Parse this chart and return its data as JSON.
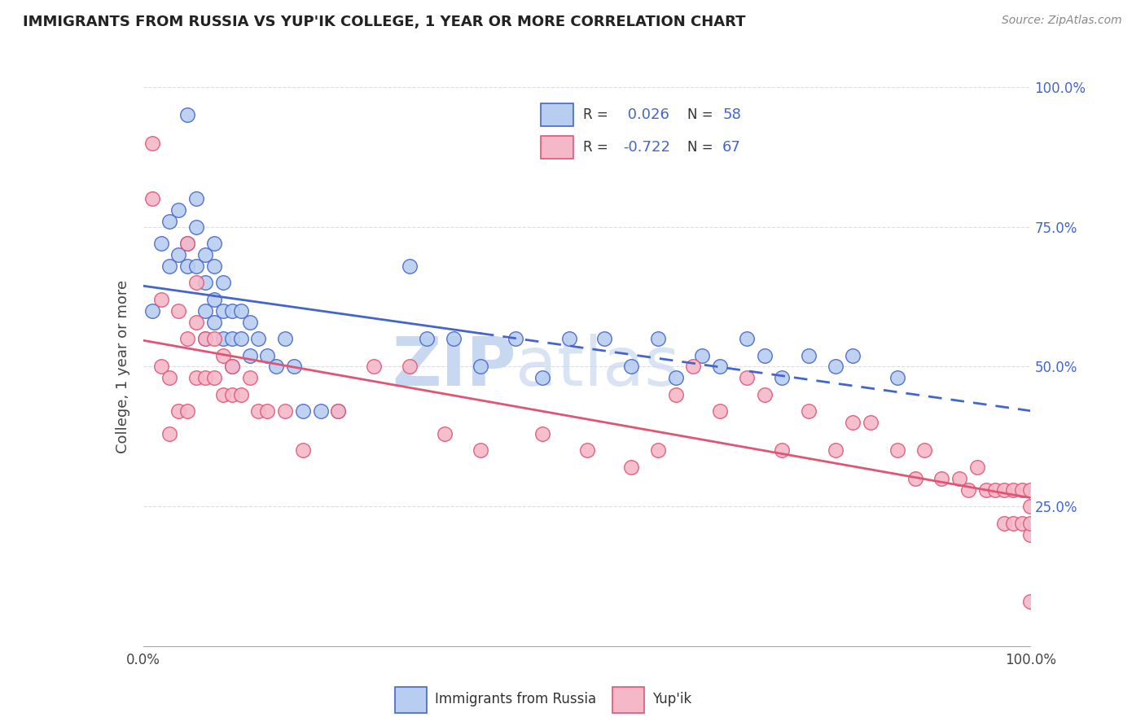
{
  "title": "IMMIGRANTS FROM RUSSIA VS YUP'IK COLLEGE, 1 YEAR OR MORE CORRELATION CHART",
  "source_text": "Source: ZipAtlas.com",
  "ylabel": "College, 1 year or more",
  "xlim": [
    0.0,
    1.0
  ],
  "ylim": [
    0.0,
    1.0
  ],
  "yticks": [
    0.0,
    0.25,
    0.5,
    0.75,
    1.0
  ],
  "ytick_labels_right": [
    "",
    "25.0%",
    "50.0%",
    "75.0%",
    "100.0%"
  ],
  "xtick_labels": [
    "0.0%",
    "",
    "",
    "",
    "100.0%"
  ],
  "scatter_color_blue": "#b8cef0",
  "scatter_color_pink": "#f5b8c8",
  "line_color_blue": "#4466cc",
  "line_color_pink": "#e05575",
  "watermark_color": "#c8d8f0",
  "blue_R": 0.026,
  "pink_R": -0.722,
  "blue_N": 58,
  "pink_N": 67,
  "blue_scatter_x": [
    0.01,
    0.02,
    0.03,
    0.03,
    0.04,
    0.04,
    0.05,
    0.05,
    0.05,
    0.06,
    0.06,
    0.06,
    0.07,
    0.07,
    0.07,
    0.07,
    0.08,
    0.08,
    0.08,
    0.08,
    0.09,
    0.09,
    0.09,
    0.1,
    0.1,
    0.1,
    0.11,
    0.11,
    0.12,
    0.12,
    0.13,
    0.14,
    0.15,
    0.16,
    0.17,
    0.18,
    0.2,
    0.22,
    0.3,
    0.32,
    0.35,
    0.38,
    0.42,
    0.45,
    0.48,
    0.52,
    0.55,
    0.58,
    0.6,
    0.63,
    0.65,
    0.68,
    0.7,
    0.72,
    0.75,
    0.78,
    0.8,
    0.85
  ],
  "blue_scatter_y": [
    0.6,
    0.72,
    0.76,
    0.68,
    0.7,
    0.78,
    0.72,
    0.68,
    0.95,
    0.8,
    0.75,
    0.68,
    0.7,
    0.65,
    0.6,
    0.55,
    0.68,
    0.62,
    0.58,
    0.72,
    0.6,
    0.65,
    0.55,
    0.6,
    0.55,
    0.5,
    0.6,
    0.55,
    0.58,
    0.52,
    0.55,
    0.52,
    0.5,
    0.55,
    0.5,
    0.42,
    0.42,
    0.42,
    0.68,
    0.55,
    0.55,
    0.5,
    0.55,
    0.48,
    0.55,
    0.55,
    0.5,
    0.55,
    0.48,
    0.52,
    0.5,
    0.55,
    0.52,
    0.48,
    0.52,
    0.5,
    0.52,
    0.48
  ],
  "pink_scatter_x": [
    0.01,
    0.01,
    0.02,
    0.02,
    0.03,
    0.03,
    0.04,
    0.04,
    0.05,
    0.05,
    0.05,
    0.06,
    0.06,
    0.06,
    0.07,
    0.07,
    0.08,
    0.08,
    0.09,
    0.09,
    0.1,
    0.1,
    0.11,
    0.12,
    0.13,
    0.14,
    0.16,
    0.18,
    0.22,
    0.26,
    0.3,
    0.34,
    0.38,
    0.45,
    0.5,
    0.55,
    0.58,
    0.6,
    0.62,
    0.65,
    0.68,
    0.7,
    0.72,
    0.75,
    0.78,
    0.8,
    0.82,
    0.85,
    0.87,
    0.88,
    0.9,
    0.92,
    0.93,
    0.94,
    0.95,
    0.96,
    0.97,
    0.97,
    0.98,
    0.98,
    0.99,
    0.99,
    1.0,
    1.0,
    1.0,
    1.0,
    1.0
  ],
  "pink_scatter_y": [
    0.8,
    0.9,
    0.5,
    0.62,
    0.38,
    0.48,
    0.42,
    0.6,
    0.42,
    0.55,
    0.72,
    0.48,
    0.58,
    0.65,
    0.48,
    0.55,
    0.48,
    0.55,
    0.45,
    0.52,
    0.45,
    0.5,
    0.45,
    0.48,
    0.42,
    0.42,
    0.42,
    0.35,
    0.42,
    0.5,
    0.5,
    0.38,
    0.35,
    0.38,
    0.35,
    0.32,
    0.35,
    0.45,
    0.5,
    0.42,
    0.48,
    0.45,
    0.35,
    0.42,
    0.35,
    0.4,
    0.4,
    0.35,
    0.3,
    0.35,
    0.3,
    0.3,
    0.28,
    0.32,
    0.28,
    0.28,
    0.28,
    0.22,
    0.28,
    0.22,
    0.22,
    0.28,
    0.2,
    0.25,
    0.22,
    0.28,
    0.08
  ]
}
